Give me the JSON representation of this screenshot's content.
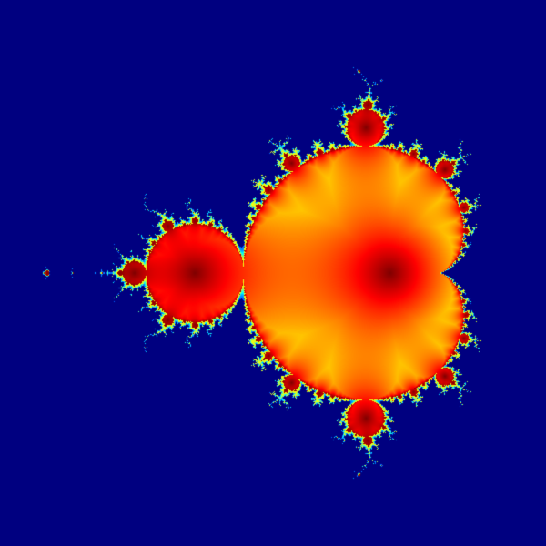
{
  "image": {
    "subject": "mandelbrot-set",
    "background_color": "#000080",
    "colormap": "jet",
    "colormap_stops": [
      "#000080",
      "#0000ff",
      "#00ffff",
      "#ffff00",
      "#ff0000",
      "#800000"
    ],
    "complex_view": {
      "re_min": -2.0,
      "re_max": 0.8,
      "im_min": -1.4,
      "im_max": 1.4
    },
    "max_iterations": 200
  }
}
